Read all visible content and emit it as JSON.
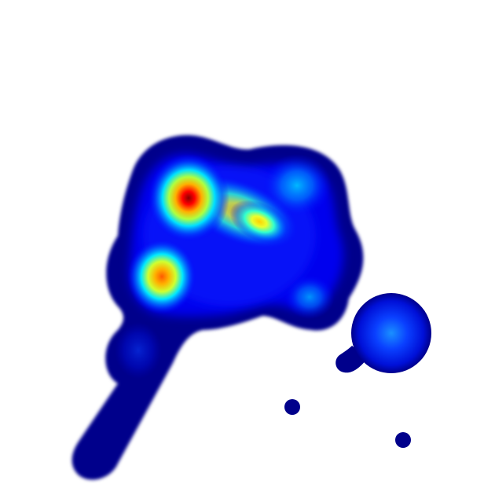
{
  "image": {
    "background_color": "#ffffff",
    "colormap": [
      "#00008b",
      "#0000ff",
      "#00bfff",
      "#00ff7f",
      "#ffff00",
      "#ff8c00",
      "#ff0000",
      "#8b0000"
    ],
    "description_visible_text": ""
  }
}
